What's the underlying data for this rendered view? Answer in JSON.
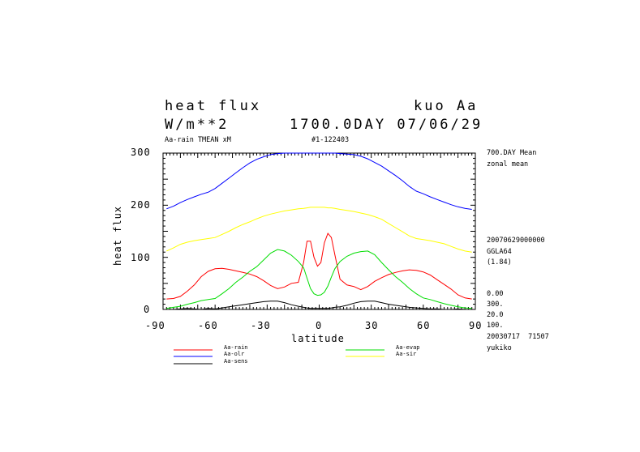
{
  "header": {
    "title_left": "heat flux",
    "title_right": "kuo Aa",
    "units": "W/m**2",
    "date_line": "1700.0DAY 07/06/29",
    "sub_left": "Aa-rain TMEAN xM",
    "sub_mid": "#1-122403"
  },
  "side_info": {
    "line1": "700.DAY Mean",
    "line2": "zonal mean",
    "line3": "20070629000000",
    "line4": "GGLA64",
    "line5": "(1.84)",
    "line6": "0.00",
    "line7": "300.",
    "line8": "20.0",
    "line9": "100.",
    "line10": "20030717  71507",
    "line11": "yukiko"
  },
  "legend": {
    "rain": "Aa-rain",
    "evap": "Aa-evap",
    "olr": "Aa-olr",
    "sir": "Aa-sir",
    "sens": "Aa-sens"
  },
  "chart_data": {
    "type": "line",
    "title": "heat flux",
    "xlabel": "latitude",
    "ylabel": "heat flux",
    "xlim": [
      -90,
      90
    ],
    "ylim": [
      0,
      300
    ],
    "x_ticks": [
      "-90",
      "-60",
      "-30",
      "0",
      "30",
      "60",
      "90"
    ],
    "y_ticks": [
      "0",
      "100",
      "200",
      "300"
    ],
    "grid": false,
    "legend_position": "bottom",
    "x": [
      -88,
      -84,
      -80,
      -76,
      -72,
      -68,
      -64,
      -60,
      -56,
      -52,
      -48,
      -44,
      -40,
      -36,
      -32,
      -28,
      -24,
      -20,
      -16,
      -12,
      -9,
      -7,
      -5,
      -3,
      -1,
      1,
      3,
      5,
      7,
      9,
      12,
      16,
      20,
      24,
      28,
      32,
      36,
      40,
      44,
      48,
      52,
      56,
      60,
      64,
      68,
      72,
      76,
      80,
      84,
      88
    ],
    "series": [
      {
        "name": "Aa-rain",
        "color": "#ff0000",
        "values": [
          20,
          21,
          25,
          35,
          47,
          63,
          73,
          78,
          79,
          77,
          74,
          71,
          68,
          63,
          55,
          46,
          40,
          43,
          50,
          52,
          90,
          131,
          131,
          100,
          83,
          90,
          128,
          146,
          138,
          105,
          58,
          47,
          44,
          38,
          44,
          54,
          61,
          67,
          71,
          74,
          76,
          75,
          72,
          66,
          57,
          48,
          39,
          28,
          22,
          20
        ]
      },
      {
        "name": "Aa-olr",
        "color": "#0000ff",
        "values": [
          193,
          198,
          205,
          211,
          216,
          221,
          225,
          232,
          242,
          252,
          262,
          272,
          281,
          288,
          293,
          297,
          299,
          300,
          300,
          300,
          300,
          300,
          300,
          300,
          300,
          300,
          300,
          300,
          300,
          300,
          299,
          298,
          297,
          294,
          289,
          282,
          275,
          266,
          257,
          247,
          236,
          227,
          222,
          216,
          211,
          206,
          201,
          197,
          194,
          192
        ]
      },
      {
        "name": "Aa-sens",
        "color": "#000000",
        "values": [
          0,
          0,
          1,
          2,
          1,
          0,
          2,
          1,
          3,
          5,
          7,
          9,
          11,
          13,
          15,
          16,
          16,
          13,
          9,
          6,
          4,
          3,
          2,
          2,
          2,
          2,
          2,
          2,
          3,
          4,
          5,
          8,
          12,
          15,
          16,
          16,
          13,
          10,
          8,
          6,
          4,
          3,
          2,
          1,
          1,
          0,
          0,
          1,
          0,
          0
        ]
      },
      {
        "name": "Aa-evap",
        "color": "#00dd00",
        "values": [
          2,
          4,
          6,
          10,
          13,
          17,
          19,
          21,
          30,
          40,
          52,
          62,
          73,
          82,
          95,
          108,
          115,
          112,
          104,
          92,
          80,
          60,
          40,
          30,
          27,
          28,
          33,
          45,
          62,
          78,
          92,
          102,
          108,
          111,
          112,
          105,
          90,
          76,
          63,
          52,
          40,
          30,
          22,
          19,
          15,
          11,
          8,
          5,
          3,
          2
        ]
      },
      {
        "name": "Aa-sir",
        "color": "#ffff00",
        "values": [
          112,
          118,
          125,
          129,
          132,
          134,
          136,
          138,
          144,
          150,
          157,
          163,
          168,
          174,
          179,
          183,
          186,
          189,
          191,
          193,
          194,
          195,
          196,
          196,
          196,
          196,
          196,
          195,
          195,
          194,
          192,
          190,
          188,
          185,
          182,
          178,
          173,
          165,
          157,
          149,
          141,
          136,
          134,
          132,
          129,
          126,
          121,
          116,
          112,
          110
        ]
      }
    ]
  }
}
